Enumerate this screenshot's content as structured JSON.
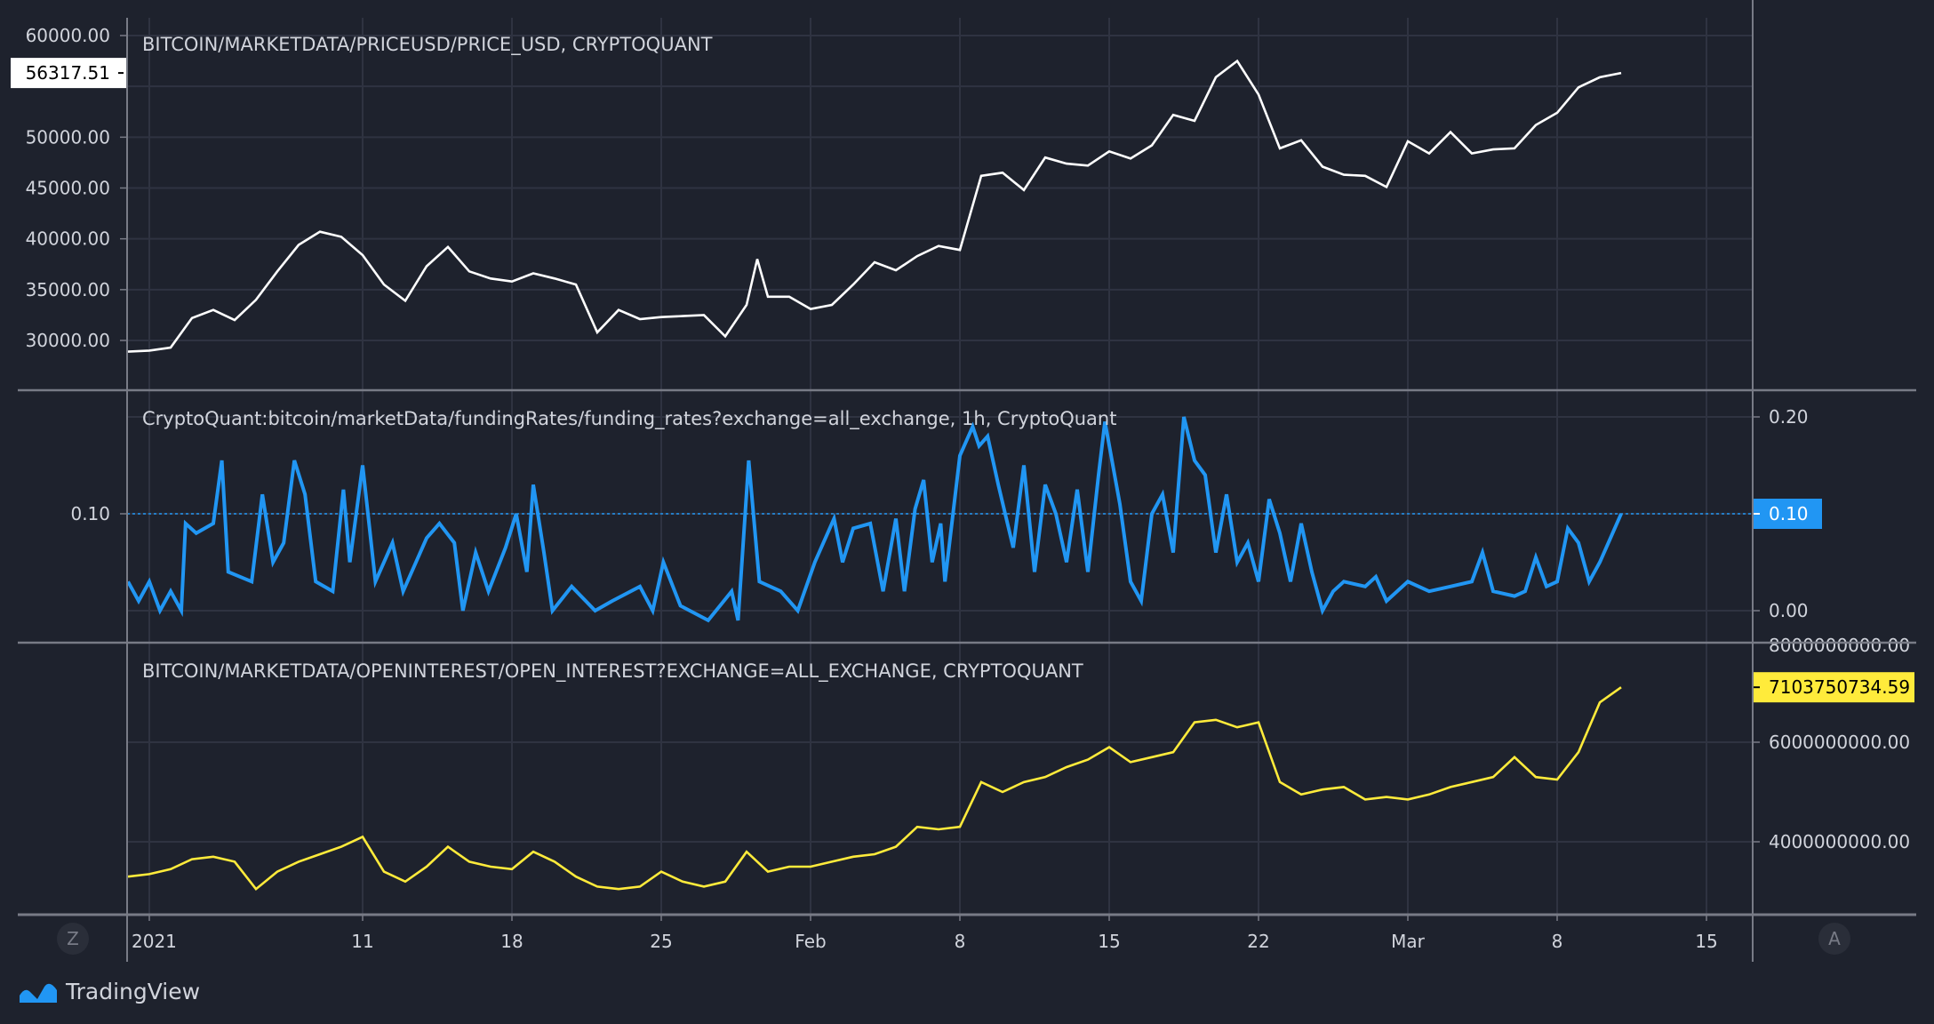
{
  "branding": {
    "logo_text": "TradingView"
  },
  "scale_buttons": {
    "left": "Z",
    "right": "A"
  },
  "colors": {
    "background": "#1e222d",
    "grid": "#2f3341",
    "axis": "#787b86",
    "price": "#ffffff",
    "funding": "#2196f3",
    "open_interest": "#ffeb3b"
  },
  "chart_data": [
    {
      "type": "line",
      "pane": "price",
      "title": "BITCOIN/MARKETDATA/PRICEUSD/PRICE_USD, CRYPTOQUANT",
      "ylabel": "",
      "ylim": [
        26500,
        62000
      ],
      "y_ticks": [
        "60000.00",
        "50000.00",
        "45000.00",
        "40000.00",
        "35000.00",
        "30000.00"
      ],
      "last_value_label": "56317.51",
      "last_value": 56317.51,
      "x_unit": "days since 2021-01-01",
      "x": [
        -1,
        0,
        1,
        2,
        3,
        4,
        5,
        6,
        7,
        8,
        9,
        10,
        11,
        12,
        13,
        14,
        15,
        16,
        17,
        18,
        19,
        20,
        21,
        22,
        23,
        24,
        25,
        26,
        27,
        28,
        28.5,
        29,
        30,
        31,
        32,
        33,
        34,
        35,
        36,
        37,
        38,
        39,
        40,
        41,
        42,
        43,
        44,
        45,
        46,
        47,
        48,
        49,
        50,
        51,
        52,
        53,
        54,
        55,
        56,
        57,
        58,
        59,
        60,
        61,
        62,
        63,
        64,
        65,
        66,
        67,
        68,
        69
      ],
      "y": [
        28900,
        29000,
        29300,
        32200,
        33000,
        32000,
        34000,
        36800,
        39400,
        40700,
        40200,
        38400,
        35500,
        33900,
        37300,
        39200,
        36800,
        36100,
        35800,
        36600,
        36100,
        35500,
        30800,
        33000,
        32100,
        32300,
        32400,
        32500,
        30400,
        33500,
        38000,
        34300,
        34300,
        33100,
        33500,
        35500,
        37700,
        36900,
        38300,
        39300,
        38900,
        46200,
        46500,
        44800,
        48000,
        47400,
        47200,
        48600,
        47900,
        49200,
        52200,
        51600,
        55900,
        57500,
        54200,
        48900,
        49700,
        47100,
        46300,
        46200,
        45100,
        49600,
        48400,
        50500,
        48400,
        48800,
        48900,
        51200,
        52400,
        54900,
        55900,
        56317.51
      ]
    },
    {
      "type": "line",
      "pane": "funding",
      "title": "CryptoQuant:bitcoin/marketData/fundingRates/funding_rates?exchange=all_exchange, 1h, CryptoQuant",
      "ylim": [
        -0.025,
        0.225
      ],
      "y_ticks": [
        "0.20",
        "0.10",
        "0.00"
      ],
      "last_value_label": "0.10",
      "last_value": 0.1,
      "x_unit": "days since 2021-01-01",
      "x": [
        -1,
        -0.5,
        0,
        0.5,
        1,
        1.5,
        1.7,
        2.2,
        3,
        3.4,
        3.7,
        4.8,
        5.3,
        5.8,
        6.3,
        6.8,
        7.3,
        7.8,
        8.6,
        9.1,
        9.4,
        10,
        10.6,
        11.4,
        11.9,
        13,
        13.6,
        14.3,
        14.7,
        15.3,
        15.9,
        16.7,
        17.2,
        17.7,
        18,
        18.5,
        18.9,
        19.8,
        20.9,
        21.7,
        23,
        23.6,
        24.1,
        24.9,
        26.2,
        27.3,
        27.6,
        28.1,
        28.6,
        29.6,
        30.4,
        31.2,
        32.1,
        32.5,
        33,
        33.8,
        34.4,
        35,
        35.4,
        35.9,
        36.3,
        36.7,
        37.1,
        37.3,
        38,
        38.6,
        38.9,
        39.3,
        39.8,
        40.5,
        41,
        41.5,
        42,
        42.5,
        43,
        43.5,
        44,
        44.5,
        44.8,
        45.5,
        46,
        46.5,
        47,
        47.5,
        48,
        48.5,
        49,
        49.5,
        50,
        50.5,
        51,
        51.5,
        52,
        52.5,
        53,
        53.5,
        54,
        54.5,
        55,
        55.5,
        56,
        57,
        57.5,
        58,
        59,
        60,
        61,
        62,
        62.5,
        63,
        64,
        64.5,
        65,
        65.5,
        66,
        66.5,
        67,
        67.5,
        68,
        68.5,
        69
      ],
      "y": [
        0.03,
        0.01,
        0.03,
        0.0,
        0.02,
        0.0,
        0.09,
        0.08,
        0.09,
        0.155,
        0.04,
        0.03,
        0.12,
        0.05,
        0.07,
        0.155,
        0.12,
        0.03,
        0.02,
        0.125,
        0.05,
        0.15,
        0.03,
        0.07,
        0.02,
        0.075,
        0.09,
        0.07,
        0.0,
        0.06,
        0.02,
        0.065,
        0.1,
        0.04,
        0.13,
        0.06,
        0.0,
        0.025,
        0.0,
        0.01,
        0.025,
        0.0,
        0.05,
        0.005,
        -0.01,
        0.02,
        -0.01,
        0.155,
        0.03,
        0.02,
        0.0,
        0.05,
        0.095,
        0.05,
        0.085,
        0.09,
        0.02,
        0.095,
        0.02,
        0.105,
        0.135,
        0.05,
        0.09,
        0.03,
        0.16,
        0.19,
        0.17,
        0.18,
        0.13,
        0.065,
        0.15,
        0.04,
        0.13,
        0.1,
        0.05,
        0.125,
        0.04,
        0.14,
        0.195,
        0.11,
        0.03,
        0.01,
        0.1,
        0.12,
        0.06,
        0.2,
        0.155,
        0.14,
        0.06,
        0.12,
        0.05,
        0.07,
        0.03,
        0.115,
        0.08,
        0.03,
        0.09,
        0.04,
        0.0,
        0.02,
        0.03,
        0.025,
        0.035,
        0.01,
        0.03,
        0.02,
        0.025,
        0.03,
        0.06,
        0.02,
        0.015,
        0.02,
        0.055,
        0.025,
        0.03,
        0.085,
        0.07,
        0.03,
        0.05,
        0.075,
        0.1
      ]
    },
    {
      "type": "line",
      "pane": "open_interest",
      "title": "BITCOIN/MARKETDATA/OPENINTEREST/OPEN_INTEREST?EXCHANGE=ALL_EXCHANGE, CRYPTOQUANT",
      "ylim": [
        2200000000,
        8000000000
      ],
      "y_ticks": [
        "8000000000.00",
        "6000000000.00",
        "4000000000.00"
      ],
      "last_value_label": "7103750734.59",
      "last_value": 7103750734.59,
      "x_unit": "days since 2021-01-01",
      "x": [
        -1,
        0,
        1,
        2,
        3,
        4,
        5,
        6,
        7,
        8,
        9,
        10,
        11,
        12,
        13,
        14,
        15,
        16,
        17,
        18,
        19,
        20,
        21,
        22,
        23,
        24,
        25,
        26,
        27,
        28,
        29,
        30,
        31,
        32,
        33,
        34,
        35,
        36,
        37,
        38,
        39,
        40,
        41,
        42,
        43,
        44,
        45,
        46,
        47,
        48,
        49,
        50,
        51,
        52,
        53,
        54,
        55,
        56,
        57,
        58,
        59,
        60,
        61,
        62,
        63,
        64,
        65,
        66,
        67,
        68,
        69
      ],
      "y": [
        3300000000,
        3350000000,
        3450000000,
        3650000000,
        3700000000,
        3600000000,
        3050000000,
        3400000000,
        3600000000,
        3750000000,
        3900000000,
        4100000000,
        3400000000,
        3200000000,
        3500000000,
        3900000000,
        3600000000,
        3500000000,
        3450000000,
        3800000000,
        3600000000,
        3300000000,
        3100000000,
        3050000000,
        3100000000,
        3400000000,
        3200000000,
        3100000000,
        3200000000,
        3800000000,
        3400000000,
        3500000000,
        3500000000,
        3600000000,
        3700000000,
        3750000000,
        3900000000,
        4300000000,
        4250000000,
        4300000000,
        5200000000,
        5000000000,
        5200000000,
        5300000000,
        5500000000,
        5650000000,
        5900000000,
        5600000000,
        5700000000,
        5800000000,
        6400000000,
        6450000000,
        6300000000,
        6400000000,
        5200000000,
        4950000000,
        5050000000,
        5100000000,
        4850000000,
        4900000000,
        4850000000,
        4950000000,
        5100000000,
        5200000000,
        5300000000,
        5700000000,
        5300000000,
        5250000000,
        5800000000,
        6800000000,
        7103750734.59
      ]
    }
  ],
  "x_axis": {
    "ticks": [
      {
        "day": 0,
        "label": "2021"
      },
      {
        "day": 10,
        "label": "11"
      },
      {
        "day": 17,
        "label": "18"
      },
      {
        "day": 24,
        "label": "25"
      },
      {
        "day": 31,
        "label": "Feb"
      },
      {
        "day": 38,
        "label": "8"
      },
      {
        "day": 45,
        "label": "15"
      },
      {
        "day": 52,
        "label": "22"
      },
      {
        "day": 59,
        "label": "Mar"
      },
      {
        "day": 66,
        "label": "8"
      },
      {
        "day": 73,
        "label": "15"
      }
    ]
  }
}
